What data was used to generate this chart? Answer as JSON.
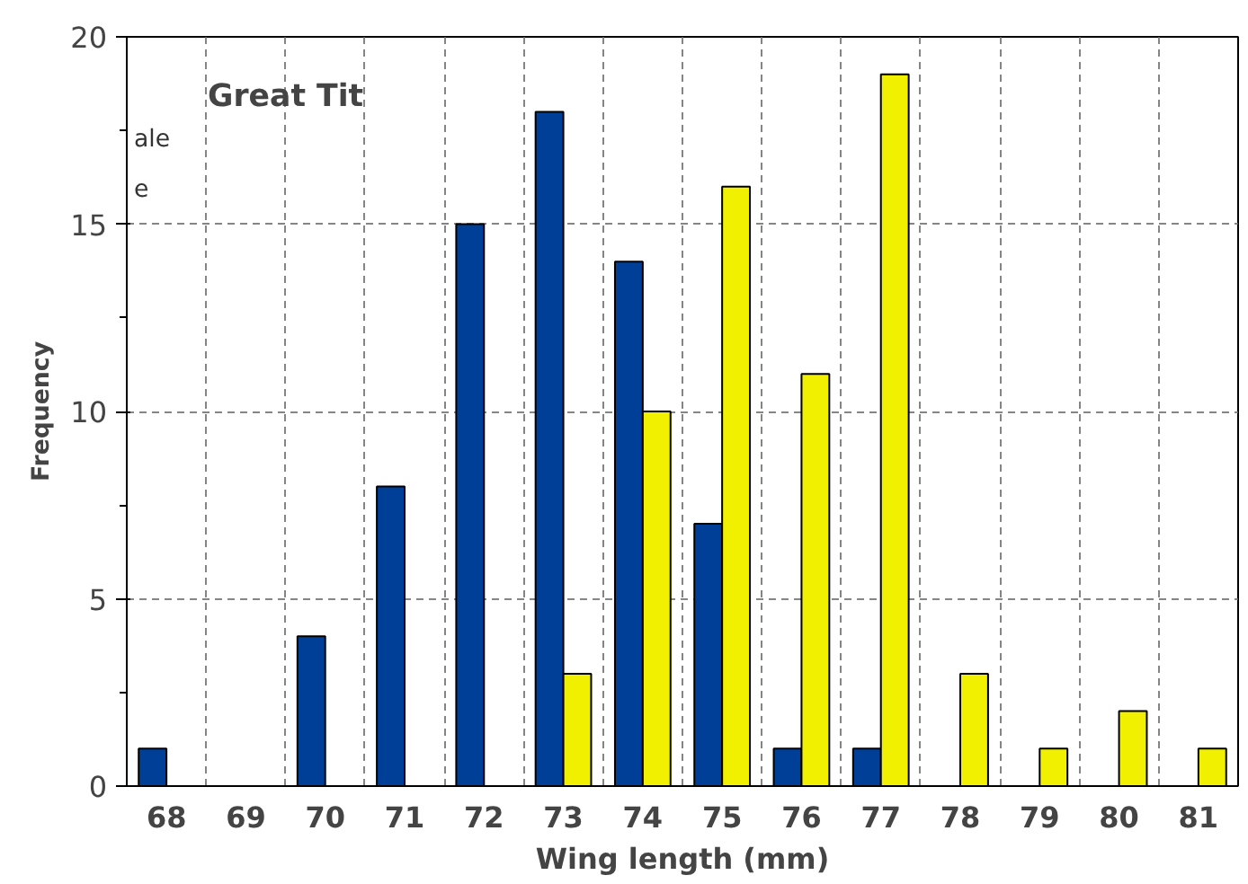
{
  "chart_data": {
    "type": "bar",
    "title": "Great Tit",
    "xlabel": "Wing length (mm)",
    "ylabel": "Frequency",
    "categories": [
      "68",
      "69",
      "70",
      "71",
      "72",
      "73",
      "74",
      "75",
      "76",
      "77",
      "78",
      "79",
      "80",
      "81"
    ],
    "series": [
      {
        "color": "#003f98",
        "values": [
          1,
          0,
          4,
          8,
          15,
          18,
          14,
          7,
          1,
          1,
          0,
          0,
          0,
          0
        ]
      },
      {
        "color": "#f0f000",
        "values": [
          0,
          0,
          0,
          0,
          0,
          3,
          10,
          16,
          11,
          19,
          3,
          1,
          2,
          1
        ]
      }
    ],
    "ylim": [
      0,
      20
    ],
    "yticks": [
      0,
      5,
      10,
      15,
      20
    ],
    "grid": true,
    "annotations": [
      "ale",
      "e"
    ]
  }
}
